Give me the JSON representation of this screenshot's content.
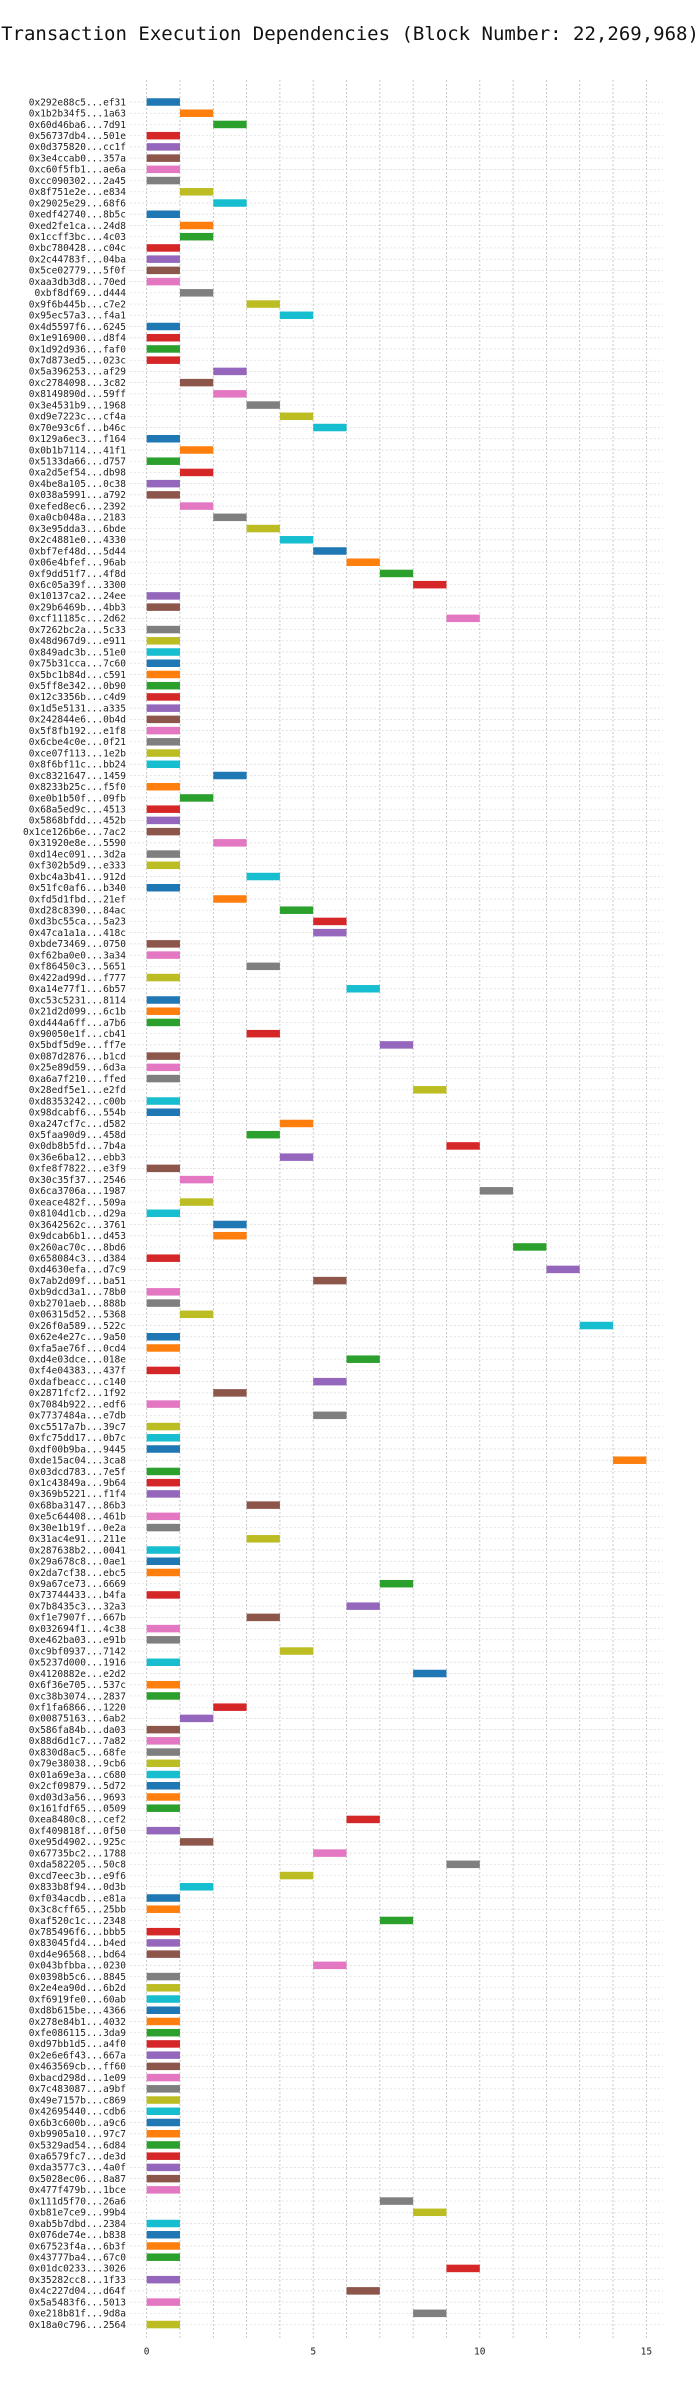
{
  "chart_data": {
    "type": "bar",
    "orientation": "horizontal",
    "title": "Transaction Execution Dependencies (Block Number: 22,269,968)",
    "xlabel": "",
    "ylabel": "",
    "xlim": [
      -0.5,
      15.5
    ],
    "x_ticks": [
      0,
      5,
      10,
      15
    ],
    "grid": true,
    "legend": "none",
    "bar_length": 1,
    "palette": [
      "#1f77b4",
      "#ff7f0e",
      "#2ca02c",
      "#d62728",
      "#9467bd",
      "#8c564b",
      "#e377c2",
      "#7f7f7f",
      "#bcbd22",
      "#17becf"
    ],
    "categories": [
      "0x292e88c5...ef31",
      "0x1b2b34f5...1a63",
      "0x60d46ba6...7d91",
      "0x56737db4...501e",
      "0x0d375820...cc1f",
      "0x3e4ccab0...357a",
      "0xc60f5fb1...ae6a",
      "0xcc090302...2a45",
      "0x8f751e2e...e834",
      "0x29025e29...68f6",
      "0xedf42740...8b5c",
      "0xed2fe1ca...24d8",
      "0x1ccff3bc...4c03",
      "0xbc780428...c04c",
      "0x2c44783f...04ba",
      "0x5ce02779...5f0f",
      "0xaa3db3d8...70ed",
      "0xbf8df69...d444",
      "0x9f6b445b...c7e2",
      "0x95ec57a3...f4a1",
      "0x4d5597f6...6245",
      "0x1e916900...d8f4",
      "0x1d92d936...faf0",
      "0x7d873ed5...023c",
      "0x5a396253...af29",
      "0xc2784098...3c82",
      "0x8149890d...59ff",
      "0x3e4531b9...1968",
      "0xd9e7223c...cf4a",
      "0x70e93c6f...b46c",
      "0x129a6ec3...f164",
      "0x0b1b7114...41f1",
      "0x5133da66...d757",
      "0xa2d5ef54...db98",
      "0x4be8a105...0c38",
      "0x038a5991...a792",
      "0xefed8ec6...2392",
      "0xa0cb048a...2183",
      "0x3e95dda3...6bde",
      "0x2c4881e0...4330",
      "0xbf7ef48d...5d44",
      "0x06e4bfef...96ab",
      "0xf9dd51f7...4f8d",
      "0x6c05a39f...3300",
      "0x10137ca2...24ee",
      "0x29b6469b...4bb3",
      "0xcf11185c...2d62",
      "0x7262bc2a...5c33",
      "0x48d967d9...e911",
      "0x849adc3b...51e0",
      "0x75b31cca...7c60",
      "0x5bc1b84d...c591",
      "0x5ff8e342...0b90",
      "0x12c3356b...c4d9",
      "0x1d5e5131...a335",
      "0x242844e6...0b4d",
      "0x5f8fb192...e1f8",
      "0x6cbe4c0e...0f21",
      "0xce07f113...1e2b",
      "0x8f6bf11c...bb24",
      "0xc8321647...1459",
      "0x8233b25c...f5f0",
      "0xe0b1b50f...09fb",
      "0x68a5ed9c...4513",
      "0x5868bfdd...452b",
      "0x1ce126b6e...7ac2",
      "0x31920e8e...5590",
      "0xd14ec091...3d2a",
      "0xf302b5d9...e333",
      "0xbc4a3b41...912d",
      "0x51fc0af6...b340",
      "0xfd5d1fbd...21ef",
      "0xd28c8390...84ac",
      "0xd3bc55ca...5a23",
      "0x47ca1a1a...418c",
      "0xbde73469...0750",
      "0xf62ba0e0...3a34",
      "0xf86450c3...5651",
      "0x422ad99d...f777",
      "0xa14e77f1...6b57",
      "0xc53c5231...8114",
      "0x21d2d099...6c1b",
      "0xd444a6ff...a7b6",
      "0x90050e1f...cb41",
      "0x5bdf5d9e...ff7e",
      "0x087d2876...b1cd",
      "0x25e89d59...6d3a",
      "0xa6a7f210...ffed",
      "0x28edf5e1...e2fd",
      "0xd8353242...c00b",
      "0x98dcabf6...554b",
      "0xa247cf7c...d582",
      "0x5faa90d9...458d",
      "0x0db8b5fd...7b4a",
      "0x36e6ba12...ebb3",
      "0xfe8f7822...e3f9",
      "0x30c35f37...2546",
      "0x6ca3706a...1987",
      "0xeace482f...509a",
      "0x8104d1cb...d29a",
      "0x3642562c...3761",
      "0x9dcab6b1...d453",
      "0x260ac70c...8bd6",
      "0x658084c3...d384",
      "0xd4630efa...d7c9",
      "0x7ab2d09f...ba51",
      "0xb9dcd3a1...78b0",
      "0xb2701aeb...888b",
      "0x06315d52...5368",
      "0x26f0a589...522c",
      "0x62e4e27c...9a50",
      "0xfa5ae76f...0cd4",
      "0xd4e03dce...018e",
      "0xf4e04383...437f",
      "0xdafbeacc...c140",
      "0x2871fcf2...1f92",
      "0x7084b922...edf6",
      "0x7737484a...e7db",
      "0xc5517a7b...39c7",
      "0xfc75dd17...0b7c",
      "0xdf00b9ba...9445",
      "0xde15ac04...3ca8",
      "0x03dcd783...7e5f",
      "0x1c43849a...9b64",
      "0x369b5221...f1f4",
      "0x68ba3147...86b3",
      "0xe5c64408...461b",
      "0x30e1b19f...0e2a",
      "0x31ac4e91...211e",
      "0x287638b2...0041",
      "0x29a678c8...0ae1",
      "0x2da7cf38...ebc5",
      "0x9a67ce73...6669",
      "0x73744433...b4fa",
      "0x7b8435c3...32a3",
      "0xf1e7907f...667b",
      "0x032694f1...4c38",
      "0xe462ba03...e91b",
      "0xc9bf0937...7142",
      "0x5237d000...1916",
      "0x4120882e...e2d2",
      "0x6f36e705...537c",
      "0xc38b3074...2837",
      "0xf1fa6866...1220",
      "0x00875163...6ab2",
      "0x586fa84b...da03",
      "0x88d6d1c7...7a82",
      "0x830d8ac5...68fe",
      "0x79e38038...9cb6",
      "0x01a69e3a...c680",
      "0x2cf09879...5d72",
      "0xd03d3a56...9693",
      "0x161fdf65...0509",
      "0xea8480c8...cef2",
      "0xf409818f...0f50",
      "0xe95d4902...925c",
      "0x67735bc2...1788",
      "0xda582205...50c8",
      "0xcd7eec3b...e9f6",
      "0x833b8f94...0d3b",
      "0xf034acdb...e81a",
      "0x3c8cff65...25bb",
      "0xaf520c1c...2348",
      "0x785496f6...bbb5",
      "0x83045fd4...b4ed",
      "0xd4e96568...bd64",
      "0x043bfbba...0230",
      "0x0398b5c6...8845",
      "0x2e4ea90d...6b2d",
      "0xf6919fe0...60ab",
      "0xd8b615be...4366",
      "0x278e84b1...4032",
      "0xfe086115...3da9",
      "0xd97bb1d5...a4f0",
      "0x2e6e6f43...667a",
      "0x463569cb...ff60",
      "0xbacd298d...1e09",
      "0x7c483087...a9bf",
      "0x49e7157b...c869",
      "0x42695440...cdb6",
      "0x6b3c600b...a9c6",
      "0xb9905a10...97c7",
      "0x5329ad54...6d84",
      "0xa6579fc7...de3d",
      "0xda3577c3...4a0f",
      "0x5028ec06...8a87",
      "0x477f479b...1bce",
      "0x111d5f70...26a6",
      "0xb81e7ce9...99b4",
      "0xab5b7dbd...2384",
      "0x076de74e...b838",
      "0x67523f4a...6b3f",
      "0x43777ba4...67c0",
      "0x01dc0233...3026",
      "0x35282cc8...1f33",
      "0x4c227d04...d64f",
      "0x5a5483f6...5013",
      "0xe218b81f...9d8a",
      "0x18a0c796...2564"
    ],
    "start": [
      0,
      1,
      2,
      0,
      0,
      0,
      0,
      0,
      1,
      2,
      0,
      1,
      1,
      0,
      0,
      0,
      0,
      1,
      3,
      4,
      0,
      0,
      0,
      0,
      2,
      1,
      2,
      3,
      4,
      5,
      0,
      1,
      0,
      1,
      0,
      0,
      1,
      2,
      3,
      4,
      5,
      6,
      7,
      8,
      0,
      0,
      9,
      0,
      0,
      0,
      0,
      0,
      0,
      0,
      0,
      0,
      0,
      0,
      0,
      0,
      2,
      0,
      1,
      0,
      0,
      0,
      2,
      0,
      0,
      3,
      0,
      2,
      4,
      5,
      5,
      0,
      0,
      3,
      0,
      6,
      0,
      0,
      0,
      3,
      7,
      0,
      0,
      0,
      8,
      0,
      0,
      4,
      3,
      9,
      4,
      0,
      1,
      10,
      1,
      0,
      2,
      2,
      11,
      0,
      12,
      5,
      0,
      0,
      1,
      13,
      0,
      0,
      6,
      0,
      5,
      2,
      0,
      5,
      0,
      0,
      0,
      14,
      0,
      0,
      0,
      3,
      0,
      0,
      3,
      0,
      0,
      0,
      7,
      0,
      6,
      3,
      0,
      0,
      4,
      0,
      8,
      0,
      0,
      2,
      1,
      0,
      0,
      0,
      0,
      0,
      0,
      0,
      0,
      6,
      0,
      1,
      5,
      9,
      4,
      1,
      0,
      0,
      7,
      0,
      0,
      0,
      5,
      0,
      0,
      0,
      0,
      0,
      0,
      0,
      0,
      0,
      0,
      0,
      0,
      0,
      0,
      0,
      0,
      0,
      0,
      0,
      0,
      7,
      8,
      0,
      0,
      0,
      0,
      9,
      0,
      6,
      0,
      8,
      0,
      0
    ],
    "color_index": [
      0,
      1,
      2,
      3,
      4,
      5,
      6,
      7,
      8,
      9,
      0,
      1,
      2,
      3,
      4,
      5,
      6,
      7,
      8,
      9,
      0,
      3,
      2,
      3,
      4,
      5,
      6,
      7,
      8,
      9,
      0,
      1,
      2,
      3,
      4,
      5,
      6,
      7,
      8,
      9,
      0,
      1,
      2,
      3,
      4,
      5,
      6,
      7,
      8,
      9,
      0,
      1,
      2,
      3,
      4,
      5,
      6,
      7,
      8,
      9,
      0,
      1,
      2,
      3,
      4,
      5,
      6,
      7,
      8,
      9,
      0,
      1,
      2,
      3,
      4,
      5,
      6,
      7,
      8,
      9,
      0,
      1,
      2,
      3,
      4,
      5,
      6,
      7,
      8,
      9,
      0,
      1,
      2,
      3,
      4,
      5,
      6,
      7,
      8,
      9,
      0,
      1,
      2,
      3,
      4,
      5,
      6,
      7,
      8,
      9,
      0,
      1,
      2,
      3,
      4,
      5,
      6,
      7,
      8,
      9,
      0,
      1,
      2,
      3,
      4,
      5,
      6,
      7,
      8,
      9,
      0,
      1,
      2,
      3,
      4,
      5,
      6,
      7,
      8,
      9,
      0,
      1,
      2,
      3,
      4,
      5,
      6,
      7,
      8,
      9,
      0,
      1,
      2,
      3,
      4,
      5,
      6,
      7,
      8,
      9,
      0,
      1,
      2,
      3,
      4,
      5,
      6,
      7,
      8,
      9,
      0,
      1,
      2,
      3,
      4,
      5,
      6,
      7,
      8,
      9,
      0,
      1,
      2,
      3,
      4,
      5,
      6,
      7,
      8,
      9,
      0,
      1,
      2,
      3,
      4,
      5,
      6,
      7,
      8,
      9,
      0,
      1,
      2,
      3,
      4,
      5,
      6,
      7,
      8,
      9,
      0,
      1,
      2,
      3,
      4,
      5,
      6,
      7,
      8,
      9
    ]
  }
}
